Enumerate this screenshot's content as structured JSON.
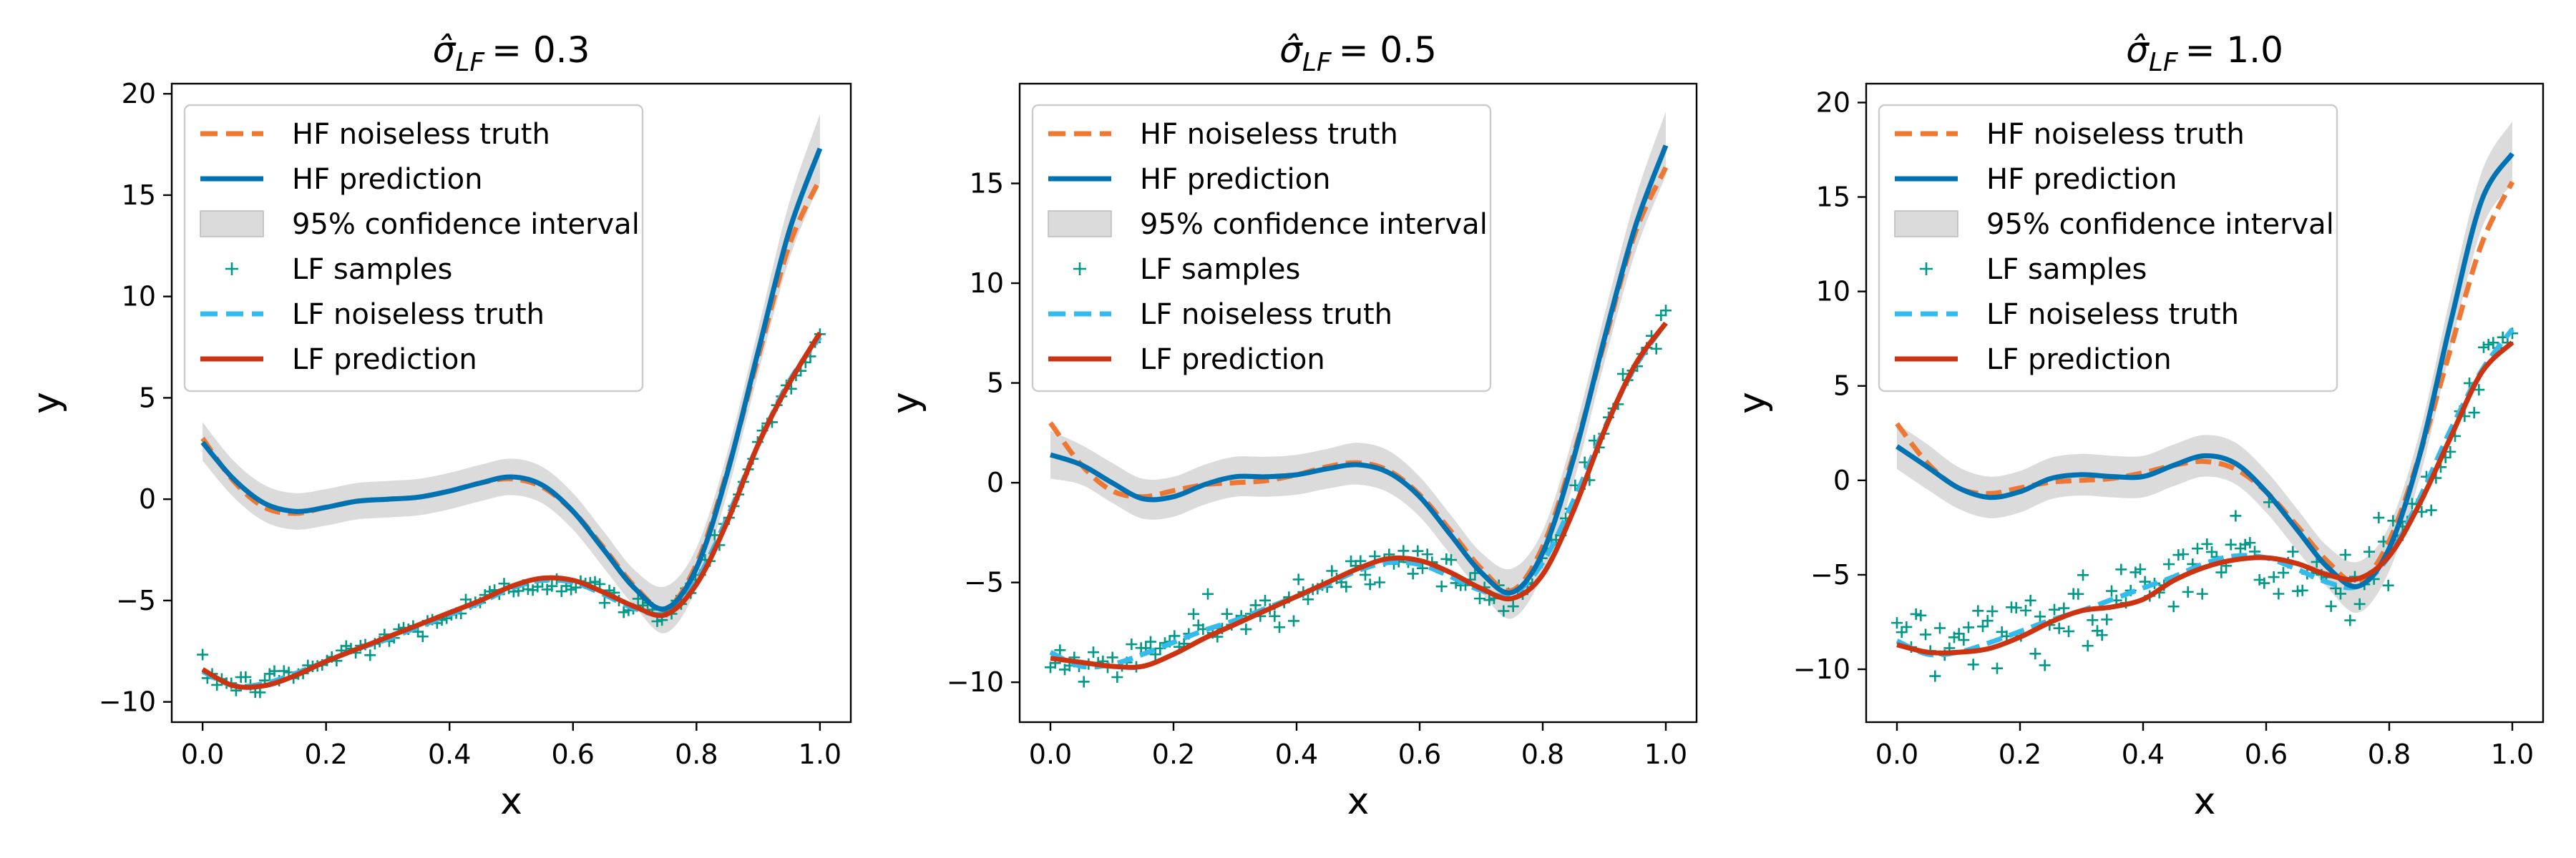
{
  "chart_data": [
    {
      "type": "line",
      "title": "σ̂LF = 0.3",
      "title_sigma": "σ̂",
      "title_sub": "LF",
      "title_value": "= 0.3",
      "xlabel": "x",
      "ylabel": "y",
      "xlim": [
        -0.05,
        1.05
      ],
      "ylim": [
        -11,
        20.5
      ],
      "xticks": [
        0.0,
        0.2,
        0.4,
        0.6,
        0.8,
        1.0
      ],
      "yticks": [
        -10,
        -5,
        0,
        5,
        10,
        15,
        20
      ],
      "grid": false,
      "legend_position": "top-left",
      "x": [
        0.0,
        0.05,
        0.1,
        0.15,
        0.2,
        0.25,
        0.3,
        0.35,
        0.4,
        0.45,
        0.5,
        0.55,
        0.6,
        0.65,
        0.7,
        0.75,
        0.8,
        0.85,
        0.9,
        0.95,
        1.0
      ],
      "series": [
        {
          "name": "HF noiseless truth",
          "style": "dashed",
          "color": "#ee7733",
          "values": [
            3.0,
            0.9,
            -0.4,
            -0.7,
            -0.4,
            -0.1,
            0.0,
            0.1,
            0.4,
            0.8,
            1.0,
            0.6,
            -0.6,
            -2.4,
            -4.3,
            -5.4,
            -3.2,
            1.4,
            7.0,
            12.5,
            15.8
          ]
        },
        {
          "name": "HF prediction",
          "style": "solid",
          "color": "#0072b2",
          "values": [
            2.8,
            1.0,
            -0.2,
            -0.6,
            -0.4,
            -0.1,
            0.0,
            0.1,
            0.4,
            0.8,
            1.1,
            0.7,
            -0.6,
            -2.5,
            -4.4,
            -5.4,
            -3.4,
            1.3,
            7.3,
            13.2,
            17.3
          ]
        },
        {
          "name": "95% confidence interval",
          "style": "band",
          "color": "#cccccc",
          "lower": [
            1.9,
            0.1,
            -1.1,
            -1.5,
            -1.3,
            -1.0,
            -0.9,
            -0.8,
            -0.5,
            -0.1,
            0.2,
            -0.2,
            -1.5,
            -3.4,
            -5.3,
            -6.6,
            -4.4,
            0.3,
            6.2,
            11.8,
            15.6
          ],
          "upper": [
            3.8,
            1.9,
            0.7,
            0.3,
            0.5,
            0.8,
            0.9,
            1.0,
            1.3,
            1.7,
            2.0,
            1.6,
            0.3,
            -1.6,
            -3.5,
            -4.3,
            -2.4,
            2.3,
            8.4,
            14.6,
            19.0
          ]
        },
        {
          "name": "LF samples",
          "style": "markers",
          "color": "#009988",
          "noise": 0.3
        },
        {
          "name": "LF noiseless truth",
          "style": "dashed",
          "color": "#33bbee",
          "values": [
            -8.5,
            -9.2,
            -9.1,
            -8.6,
            -8.0,
            -7.4,
            -6.9,
            -6.3,
            -5.7,
            -5.1,
            -4.4,
            -4.0,
            -4.1,
            -4.7,
            -5.4,
            -5.6,
            -4.0,
            -0.9,
            2.7,
            5.8,
            8.0
          ]
        },
        {
          "name": "LF prediction",
          "style": "solid",
          "color": "#cc3311",
          "values": [
            -8.4,
            -9.2,
            -9.2,
            -8.7,
            -8.0,
            -7.4,
            -6.8,
            -6.2,
            -5.6,
            -5.0,
            -4.3,
            -3.9,
            -4.0,
            -4.6,
            -5.3,
            -5.7,
            -4.2,
            -1.1,
            2.7,
            5.7,
            8.2
          ]
        }
      ]
    },
    {
      "type": "line",
      "title": "σ̂LF = 0.5",
      "title_sigma": "σ̂",
      "title_sub": "LF",
      "title_value": "= 0.5",
      "xlabel": "x",
      "ylabel": "y",
      "xlim": [
        -0.05,
        1.05
      ],
      "ylim": [
        -12,
        20
      ],
      "xticks": [
        0.0,
        0.2,
        0.4,
        0.6,
        0.8,
        1.0
      ],
      "yticks": [
        -10,
        -5,
        0,
        5,
        10,
        15
      ],
      "grid": false,
      "legend_position": "top-left",
      "x": [
        0.0,
        0.05,
        0.1,
        0.15,
        0.2,
        0.25,
        0.3,
        0.35,
        0.4,
        0.45,
        0.5,
        0.55,
        0.6,
        0.65,
        0.7,
        0.75,
        0.8,
        0.85,
        0.9,
        0.95,
        1.0
      ],
      "series": [
        {
          "name": "HF noiseless truth",
          "style": "dashed",
          "color": "#ee7733",
          "values": [
            3.0,
            0.9,
            -0.4,
            -0.7,
            -0.4,
            -0.1,
            0.0,
            0.1,
            0.4,
            0.8,
            1.0,
            0.6,
            -0.6,
            -2.4,
            -4.3,
            -5.4,
            -3.2,
            1.4,
            7.0,
            12.5,
            15.8
          ]
        },
        {
          "name": "HF prediction",
          "style": "solid",
          "color": "#0072b2",
          "values": [
            1.4,
            0.9,
            0.0,
            -0.8,
            -0.7,
            -0.1,
            0.3,
            0.3,
            0.4,
            0.7,
            0.9,
            0.5,
            -0.7,
            -2.6,
            -4.5,
            -5.5,
            -3.5,
            1.2,
            7.2,
            12.8,
            16.9
          ]
        },
        {
          "name": "95% confidence interval",
          "style": "band",
          "color": "#cccccc",
          "lower": [
            0.2,
            -0.1,
            -1.0,
            -1.8,
            -1.7,
            -1.1,
            -0.7,
            -0.7,
            -0.6,
            -0.3,
            -0.1,
            -0.5,
            -1.7,
            -3.6,
            -5.5,
            -6.8,
            -4.6,
            0.0,
            6.0,
            11.5,
            15.4
          ],
          "upper": [
            2.6,
            1.9,
            1.0,
            0.2,
            0.3,
            0.9,
            1.3,
            1.3,
            1.4,
            1.7,
            2.0,
            1.6,
            0.3,
            -1.6,
            -3.5,
            -4.3,
            -2.4,
            2.4,
            8.4,
            14.2,
            18.6
          ]
        },
        {
          "name": "LF samples",
          "style": "markers",
          "color": "#009988",
          "noise": 0.5
        },
        {
          "name": "LF noiseless truth",
          "style": "dashed",
          "color": "#33bbee",
          "values": [
            -8.5,
            -9.2,
            -9.1,
            -8.6,
            -8.0,
            -7.4,
            -6.9,
            -6.3,
            -5.7,
            -5.1,
            -4.4,
            -4.0,
            -4.1,
            -4.7,
            -5.4,
            -5.6,
            -4.0,
            -0.9,
            2.7,
            5.8,
            8.0
          ]
        },
        {
          "name": "LF prediction",
          "style": "solid",
          "color": "#cc3311",
          "values": [
            -8.8,
            -9.0,
            -9.2,
            -9.2,
            -8.6,
            -7.8,
            -7.1,
            -6.4,
            -5.7,
            -5.0,
            -4.3,
            -3.8,
            -3.9,
            -4.5,
            -5.3,
            -5.8,
            -4.6,
            -1.4,
            2.6,
            5.9,
            8.0
          ]
        }
      ]
    },
    {
      "type": "line",
      "title": "σ̂LF = 1.0",
      "title_sigma": "σ̂",
      "title_sub": "LF",
      "title_value": "= 1.0",
      "xlabel": "x",
      "ylabel": "y",
      "xlim": [
        -0.05,
        1.05
      ],
      "ylim": [
        -12.8,
        21
      ],
      "xticks": [
        0.0,
        0.2,
        0.4,
        0.6,
        0.8,
        1.0
      ],
      "yticks": [
        -10,
        -5,
        0,
        5,
        10,
        15,
        20
      ],
      "grid": false,
      "legend_position": "top-left",
      "x": [
        0.0,
        0.05,
        0.1,
        0.15,
        0.2,
        0.25,
        0.3,
        0.35,
        0.4,
        0.45,
        0.5,
        0.55,
        0.6,
        0.65,
        0.7,
        0.75,
        0.8,
        0.85,
        0.9,
        0.95,
        1.0
      ],
      "series": [
        {
          "name": "HF noiseless truth",
          "style": "dashed",
          "color": "#ee7733",
          "values": [
            3.0,
            0.9,
            -0.4,
            -0.7,
            -0.4,
            -0.1,
            0.0,
            0.1,
            0.4,
            0.8,
            1.0,
            0.6,
            -0.6,
            -2.4,
            -4.3,
            -5.4,
            -3.2,
            1.4,
            7.0,
            12.5,
            15.8
          ]
        },
        {
          "name": "HF prediction",
          "style": "solid",
          "color": "#0072b2",
          "values": [
            1.8,
            0.7,
            -0.4,
            -0.9,
            -0.6,
            0.1,
            0.3,
            0.2,
            0.2,
            0.8,
            1.3,
            0.9,
            -0.6,
            -2.6,
            -4.6,
            -5.6,
            -3.6,
            1.4,
            8.4,
            14.8,
            17.3
          ]
        },
        {
          "name": "95% confidence interval",
          "style": "band",
          "color": "#cccccc",
          "lower": [
            0.6,
            -0.5,
            -1.5,
            -2.0,
            -1.7,
            -1.0,
            -0.8,
            -0.9,
            -0.9,
            -0.3,
            0.2,
            -0.2,
            -1.7,
            -3.7,
            -5.7,
            -7.0,
            -4.8,
            0.2,
            7.0,
            13.3,
            15.7
          ],
          "upper": [
            3.0,
            1.9,
            0.7,
            0.2,
            0.5,
            1.2,
            1.4,
            1.3,
            1.3,
            1.9,
            2.4,
            2.0,
            0.5,
            -1.5,
            -3.5,
            -4.3,
            -2.4,
            2.6,
            9.8,
            16.3,
            19.0
          ]
        },
        {
          "name": "LF samples",
          "style": "markers",
          "color": "#009988",
          "noise": 1.0
        },
        {
          "name": "LF noiseless truth",
          "style": "dashed",
          "color": "#33bbee",
          "values": [
            -8.5,
            -9.2,
            -9.1,
            -8.6,
            -8.0,
            -7.4,
            -6.9,
            -6.3,
            -5.7,
            -5.1,
            -4.4,
            -4.0,
            -4.1,
            -4.7,
            -5.4,
            -5.6,
            -4.0,
            -0.9,
            2.7,
            5.8,
            8.0
          ]
        },
        {
          "name": "LF prediction",
          "style": "solid",
          "color": "#cc3311",
          "values": [
            -8.7,
            -9.1,
            -9.1,
            -8.9,
            -8.3,
            -7.5,
            -6.9,
            -6.7,
            -6.3,
            -5.3,
            -4.6,
            -4.2,
            -4.1,
            -4.4,
            -5.0,
            -5.2,
            -4.0,
            -1.2,
            2.3,
            5.7,
            7.3
          ]
        }
      ]
    }
  ]
}
